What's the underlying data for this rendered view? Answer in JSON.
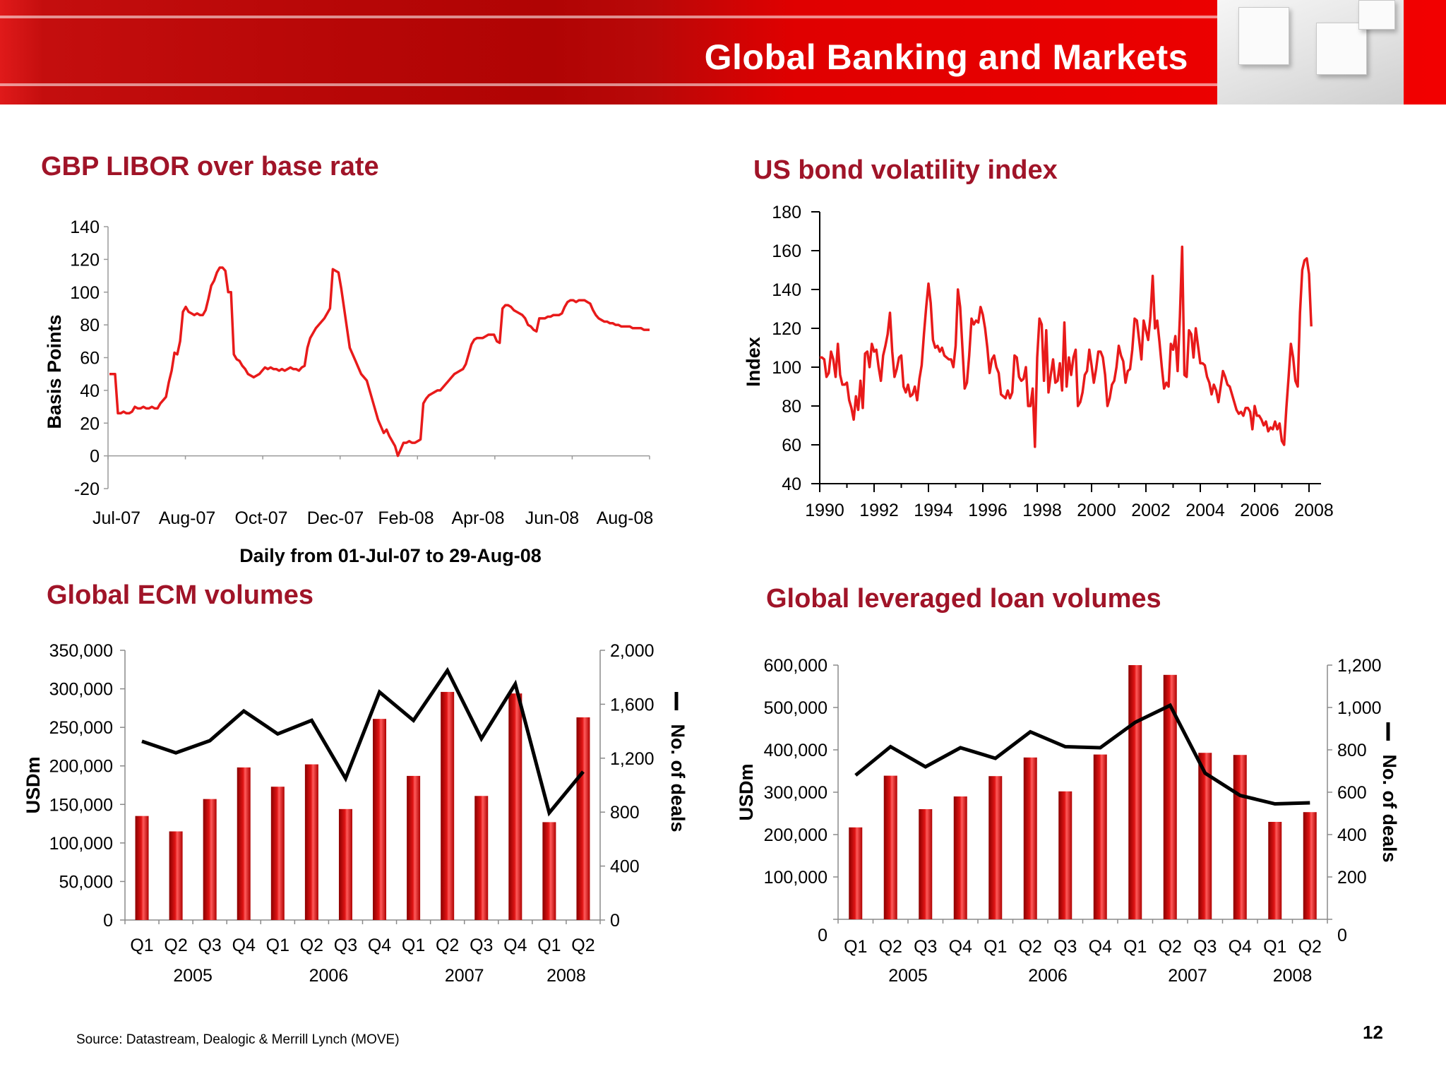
{
  "header": {
    "title": "Global Banking and Markets"
  },
  "footer": {
    "source": "Source: Datastream, Dealogic & Merrill Lynch (MOVE)",
    "page_number": "12"
  },
  "colors": {
    "brand_red": "#e00000",
    "title_red": "#a01428",
    "series_red": "#e81a1a",
    "deals_line": "#000000"
  },
  "chart_data": [
    {
      "id": "libor",
      "type": "line",
      "title": "GBP LIBOR over base rate",
      "xlabel": "Daily from  01-Jul-07 to 29-Aug-08",
      "ylabel": "Basis Points",
      "ylim": [
        -20,
        140
      ],
      "yticks": [
        -20,
        0,
        20,
        40,
        60,
        80,
        100,
        120,
        140
      ],
      "xtick_labels": [
        "Jul-07",
        "Aug-07",
        "Oct-07",
        "Dec-07",
        "Feb-08",
        "Apr-08",
        "Jun-08",
        "Aug-08"
      ],
      "series": [
        {
          "color": "#e81a1a",
          "values": [
            50,
            50,
            50,
            26,
            26,
            27,
            26,
            26,
            27,
            30,
            29,
            29,
            30,
            29,
            29,
            30,
            29,
            29,
            32,
            34,
            36,
            45,
            52,
            63,
            62,
            70,
            88,
            91,
            88,
            87,
            86,
            87,
            86,
            86,
            89,
            96,
            104,
            107,
            112,
            115,
            115,
            113,
            100,
            100,
            62,
            59,
            58,
            55,
            53,
            50,
            49,
            48,
            49,
            50,
            52,
            54,
            53,
            54,
            53,
            53,
            52,
            53,
            52,
            53,
            54,
            53,
            53,
            52,
            54,
            55,
            66,
            72,
            75,
            78,
            80,
            82,
            84,
            87,
            90,
            114,
            113,
            112,
            102,
            90,
            78,
            66,
            62,
            58,
            54,
            50,
            48,
            46,
            40,
            34,
            28,
            22,
            18,
            14,
            16,
            12,
            9,
            6,
            0,
            4,
            8,
            8,
            9,
            8,
            8,
            9,
            10,
            32,
            35,
            37,
            38,
            39,
            40,
            40,
            42,
            44,
            46,
            48,
            50,
            51,
            52,
            53,
            56,
            62,
            68,
            71,
            72,
            72,
            72,
            73,
            74,
            74,
            74,
            70,
            69,
            90,
            92,
            92,
            91,
            89,
            88,
            87,
            86,
            84,
            80,
            79,
            77,
            76,
            84,
            84,
            84,
            85,
            85,
            86,
            86,
            86,
            87,
            91,
            94,
            95,
            95,
            94,
            95,
            95,
            95,
            94,
            93,
            89,
            86,
            84,
            83,
            82,
            82,
            81,
            81,
            80,
            80,
            79,
            79,
            79,
            79,
            78,
            78,
            78,
            78,
            77,
            77,
            77
          ]
        }
      ]
    },
    {
      "id": "move",
      "type": "line",
      "title": "US bond volatility index",
      "ylabel": "Index",
      "ylim": [
        40,
        180
      ],
      "yticks": [
        40,
        60,
        80,
        100,
        120,
        140,
        160,
        180
      ],
      "xlim": [
        1990,
        2008.5
      ],
      "xticks": [
        "1990",
        "1992",
        "1994",
        "1996",
        "1998",
        "2000",
        "2002",
        "2004",
        "2006",
        "2008"
      ],
      "series": [
        {
          "color": "#e81a1a",
          "x_start": 1990.0,
          "x_step": 0.083333,
          "values": [
            105,
            105,
            104,
            95,
            97,
            108,
            104,
            95,
            112,
            96,
            91,
            91,
            92,
            83,
            79,
            73,
            85,
            78,
            93,
            79,
            107,
            108,
            100,
            112,
            108,
            109,
            100,
            93,
            106,
            111,
            117,
            128,
            108,
            95,
            99,
            105,
            106,
            90,
            87,
            91,
            85,
            86,
            90,
            83,
            94,
            101,
            117,
            131,
            143,
            133,
            114,
            110,
            111,
            108,
            110,
            106,
            105,
            104,
            104,
            100,
            111,
            140,
            131,
            110,
            89,
            92,
            106,
            125,
            122,
            124,
            123,
            131,
            127,
            120,
            110,
            97,
            104,
            106,
            100,
            97,
            86,
            85,
            84,
            88,
            84,
            87,
            106,
            105,
            95,
            93,
            94,
            100,
            80,
            80,
            89,
            59,
            105,
            125,
            122,
            93,
            119,
            87,
            96,
            104,
            92,
            93,
            102,
            88,
            123,
            90,
            105,
            96,
            105,
            109,
            80,
            82,
            87,
            96,
            98,
            109,
            101,
            92,
            99,
            108,
            108,
            105,
            96,
            80,
            84,
            91,
            93,
            100,
            111,
            106,
            103,
            92,
            98,
            99,
            109,
            125,
            124,
            114,
            104,
            124,
            119,
            114,
            126,
            147,
            120,
            124,
            113,
            100,
            89,
            92,
            90,
            112,
            109,
            116,
            98,
            126,
            162,
            96,
            95,
            119,
            117,
            105,
            120,
            111,
            102,
            102,
            101,
            95,
            92,
            86,
            91,
            88,
            82,
            90,
            98,
            95,
            91,
            90,
            86,
            82,
            78,
            76,
            77,
            75,
            79,
            79,
            77,
            68,
            80,
            75,
            75,
            73,
            70,
            72,
            67,
            69,
            68,
            72,
            68,
            71,
            62,
            60,
            79,
            95,
            112,
            105,
            93,
            90,
            128,
            150,
            155,
            156,
            148,
            121
          ]
        }
      ]
    },
    {
      "id": "ecm",
      "type": "bar",
      "title": "Global ECM volumes",
      "ylabel": "USDm",
      "y2label": "No. of deals",
      "ylim": [
        0,
        350000
      ],
      "yticks": [
        "0",
        "50,000",
        "100,000",
        "150,000",
        "200,000",
        "250,000",
        "300,000",
        "350,000"
      ],
      "y2lim": [
        0,
        2000
      ],
      "y2ticks": [
        "0",
        "400",
        "800",
        "1,200",
        "1,600",
        "2,000"
      ],
      "categories": [
        "Q1",
        "Q2",
        "Q3",
        "Q4",
        "Q1",
        "Q2",
        "Q3",
        "Q4",
        "Q1",
        "Q2",
        "Q3",
        "Q4",
        "Q1",
        "Q2"
      ],
      "years": [
        "2005",
        "2006",
        "2007",
        "2008"
      ],
      "series": [
        {
          "type": "bar",
          "axis": "left",
          "values": [
            135000,
            115000,
            157000,
            198000,
            173000,
            202000,
            144000,
            261000,
            187000,
            296000,
            161000,
            294000,
            127000,
            263000
          ]
        },
        {
          "type": "line",
          "axis": "right",
          "values": [
            1325,
            1240,
            1330,
            1550,
            1380,
            1480,
            1050,
            1690,
            1480,
            1850,
            1345,
            1750,
            795,
            1100
          ]
        }
      ]
    },
    {
      "id": "levloan",
      "type": "bar",
      "title": "Global leveraged loan volumes",
      "ylabel": "USDm",
      "y2label": "No. of deals",
      "ylim": [
        0,
        600000
      ],
      "yticks": [
        "0",
        "100,000",
        "200,000",
        "300,000",
        "400,000",
        "500,000",
        "600,000"
      ],
      "y2lim": [
        0,
        1200
      ],
      "y2ticks": [
        "0",
        "200",
        "400",
        "600",
        "800",
        "1,000",
        "1,200"
      ],
      "categories": [
        "Q1",
        "Q2",
        "Q3",
        "Q4",
        "Q1",
        "Q2",
        "Q3",
        "Q4",
        "Q1",
        "Q2",
        "Q3",
        "Q4",
        "Q1",
        "Q2"
      ],
      "years": [
        "2005",
        "2006",
        "2007",
        "2008"
      ],
      "series": [
        {
          "type": "bar",
          "axis": "left",
          "values": [
            217000,
            339000,
            260000,
            290000,
            338000,
            382000,
            302000,
            389000,
            600000,
            577000,
            393000,
            388000,
            230000,
            253000
          ]
        },
        {
          "type": "line",
          "axis": "right",
          "values": [
            680,
            815,
            720,
            810,
            760,
            885,
            815,
            810,
            930,
            1010,
            690,
            585,
            545,
            550
          ]
        }
      ]
    }
  ]
}
